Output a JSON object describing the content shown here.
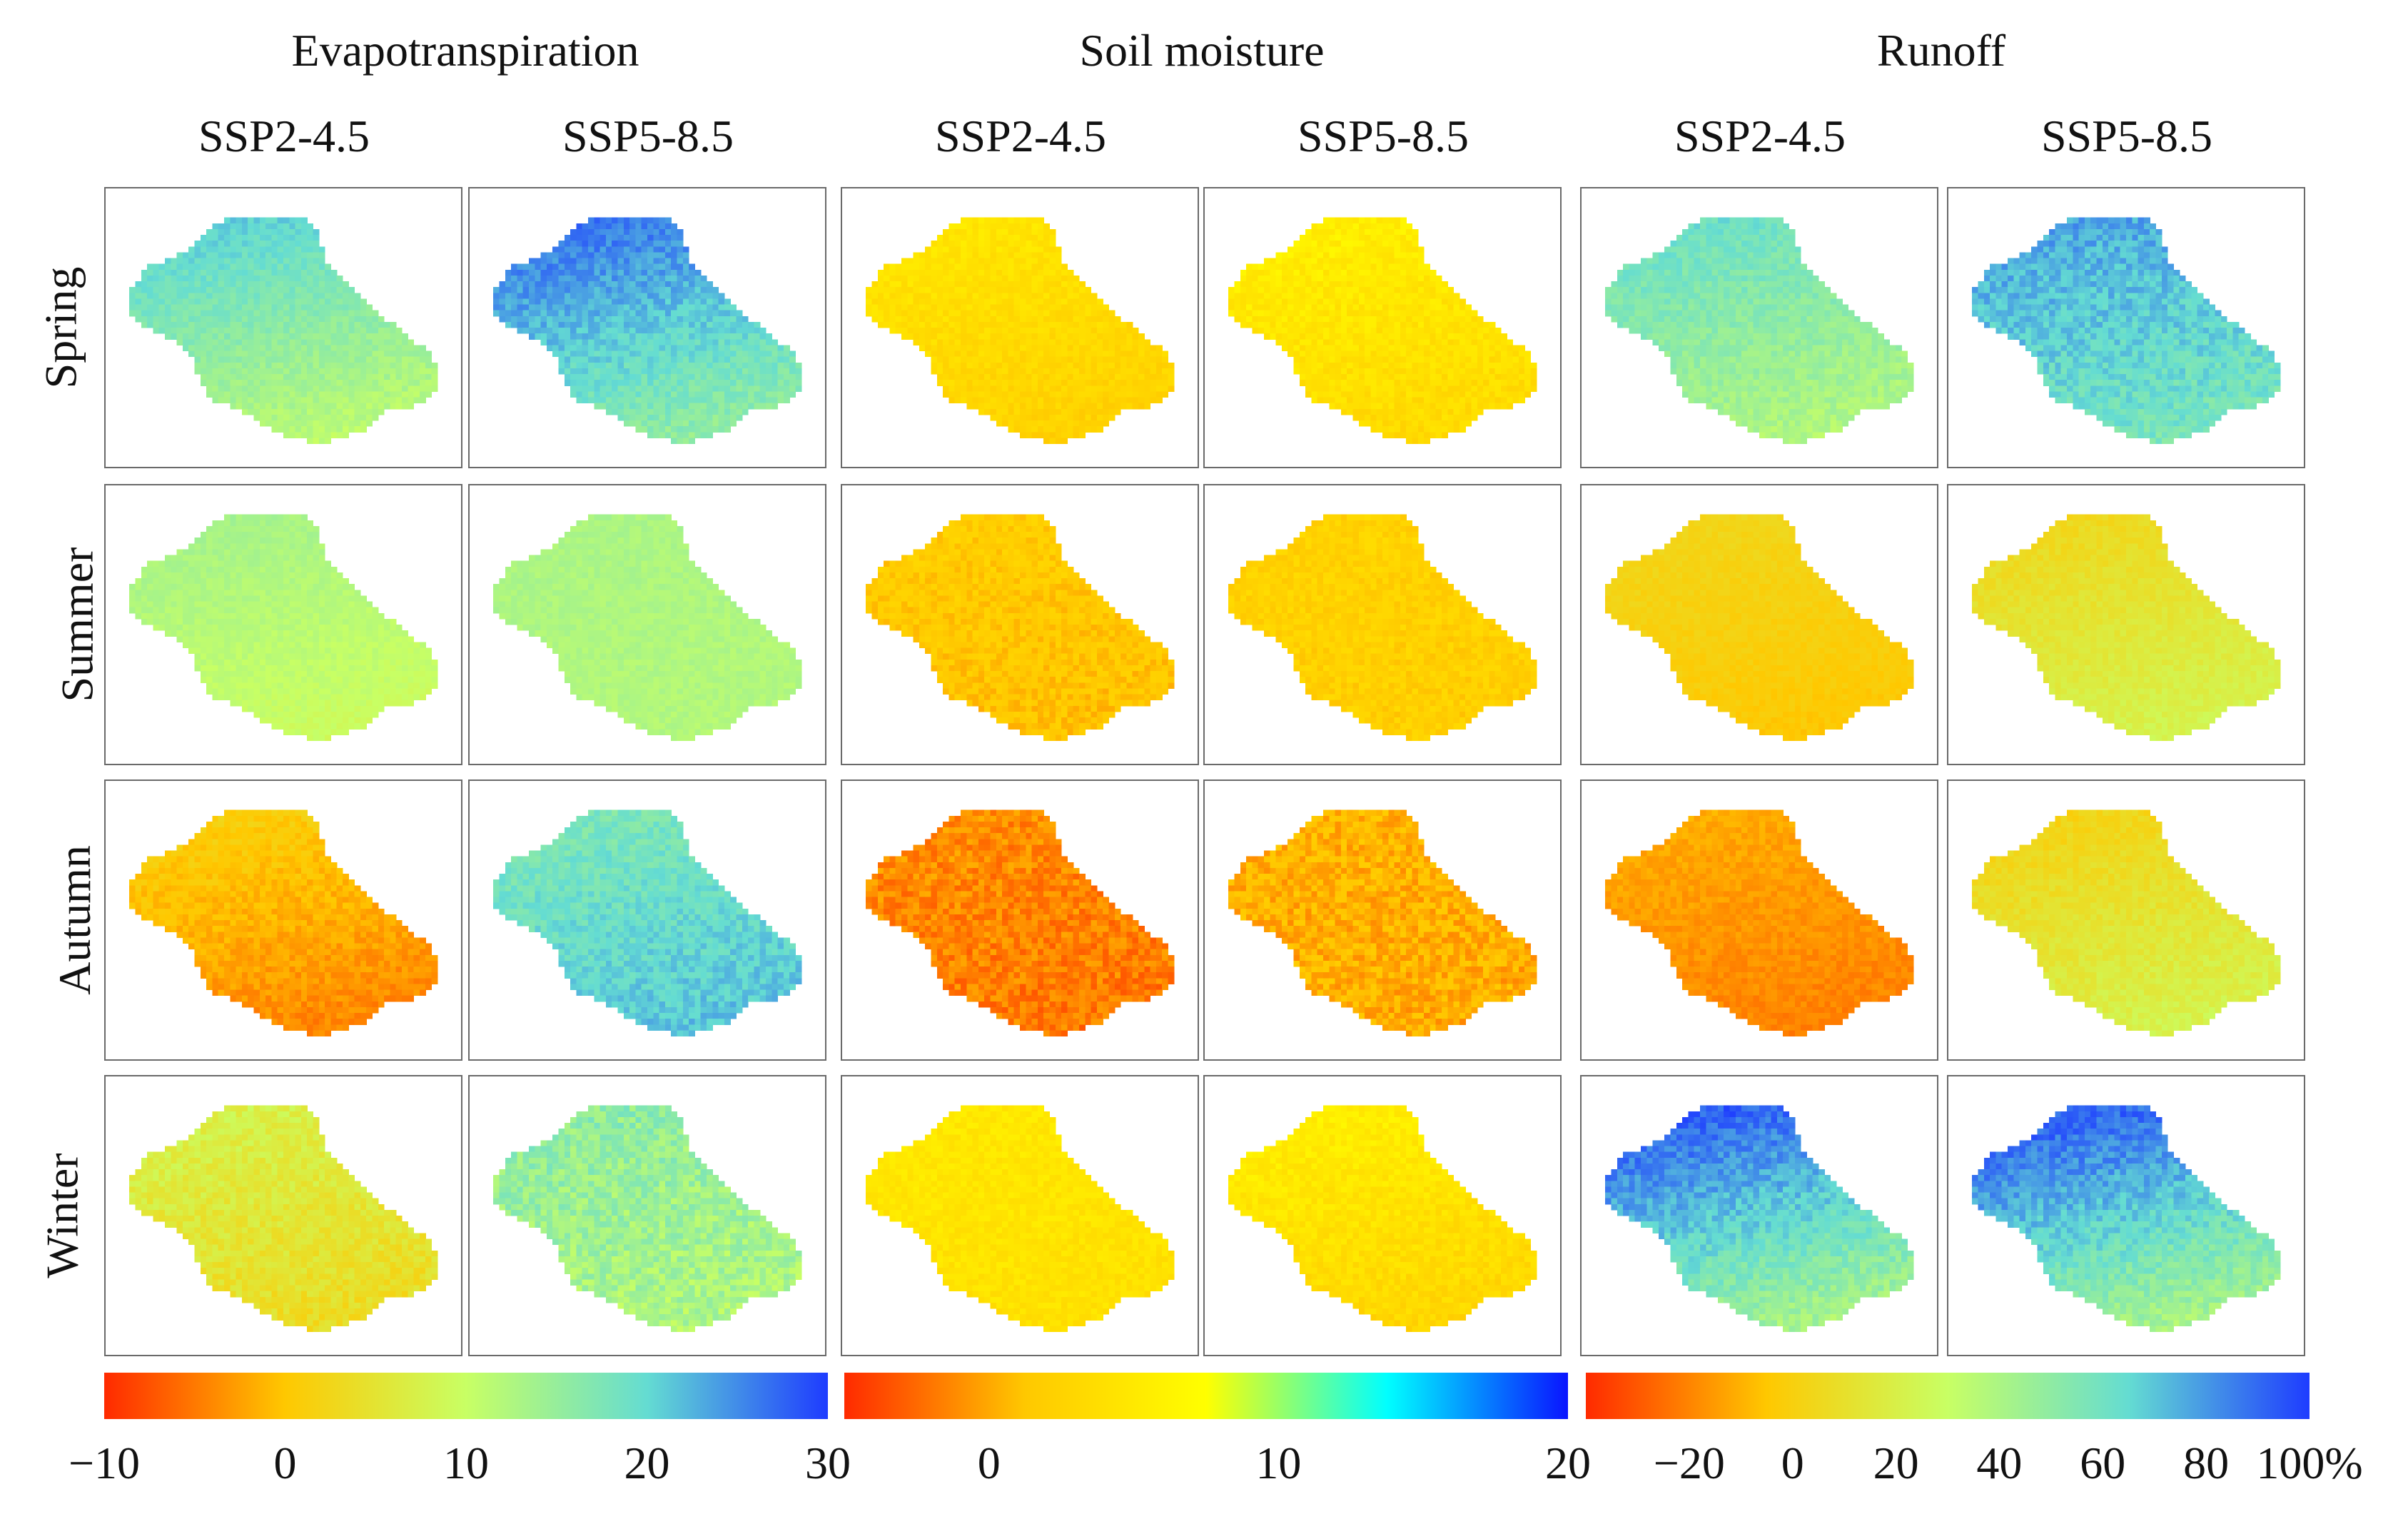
{
  "chart_data": {
    "type": "heatmap",
    "title": "",
    "variables": [
      {
        "name": "Evapotranspiration",
        "scenarios": [
          "SSP2-4.5",
          "SSP5-8.5"
        ],
        "colorbar": {
          "range": [
            -10,
            30
          ],
          "ticks": [
            "−10",
            "0",
            "10",
            "20",
            "30"
          ],
          "tick_values": [
            -10,
            0,
            10,
            20,
            30
          ],
          "colors": [
            "#ff2a00",
            "#ffc800",
            "#c8ff64",
            "#64dcd2",
            "#1e3cff"
          ]
        },
        "panels": {
          "Spring": {
            "SSP2-4.5": {
              "north": 22,
              "south": 10,
              "noise": 1.5
            },
            "SSP5-8.5": {
              "north": 28,
              "south": 14,
              "noise": 2.0
            }
          },
          "Summer": {
            "SSP2-4.5": {
              "north": 14,
              "south": 9,
              "noise": 1.0
            },
            "SSP5-8.5": {
              "north": 13,
              "south": 12,
              "noise": 1.0
            }
          },
          "Autumn": {
            "SSP2-4.5": {
              "north": 2,
              "south": -5,
              "noise": 1.5
            },
            "SSP5-8.5": {
              "north": 17,
              "south": 22,
              "noise": 2.0
            }
          },
          "Winter": {
            "SSP2-4.5": {
              "north": 8,
              "south": 3,
              "noise": 2.0
            },
            "SSP5-8.5": {
              "north": 16,
              "south": 12,
              "noise": 3.0
            }
          }
        }
      },
      {
        "name": "Soil moisture",
        "scenarios": [
          "SSP2-4.5",
          "SSP5-8.5"
        ],
        "colorbar": {
          "range": [
            -5,
            20
          ],
          "ticks": [
            "0",
            "10",
            "20"
          ],
          "tick_values": [
            0,
            10,
            20
          ],
          "colors": [
            "#ff2a00",
            "#ffc800",
            "#ffff00",
            "#00ffff",
            "#0a14ff"
          ]
        },
        "panels": {
          "Spring": {
            "SSP2-4.5": {
              "north": 5,
              "south": 2,
              "noise": 1.0
            },
            "SSP5-8.5": {
              "north": 6,
              "south": 3,
              "noise": 1.2
            }
          },
          "Summer": {
            "SSP2-4.5": {
              "north": 2,
              "south": 1,
              "noise": 1.2
            },
            "SSP5-8.5": {
              "north": 2.5,
              "south": 2,
              "noise": 1.2
            }
          },
          "Autumn": {
            "SSP2-4.5": {
              "north": -1,
              "south": -2,
              "noise": 1.5
            },
            "SSP5-8.5": {
              "north": 0.5,
              "south": 0,
              "noise": 1.5
            }
          },
          "Winter": {
            "SSP2-4.5": {
              "north": 5,
              "south": 4,
              "noise": 1.0
            },
            "SSP5-8.5": {
              "north": 6,
              "south": 2.5,
              "noise": 1.2
            }
          }
        }
      },
      {
        "name": "Runoff",
        "scenarios": [
          "SSP2-4.5",
          "SSP5-8.5"
        ],
        "colorbar": {
          "range": [
            -40,
            100
          ],
          "ticks": [
            "−20",
            "0",
            "20",
            "40",
            "60",
            "80",
            "100%"
          ],
          "tick_values": [
            -20,
            0,
            20,
            40,
            60,
            80,
            100
          ],
          "colors": [
            "#ff2a00",
            "#ffc800",
            "#c8ff64",
            "#64dcd2",
            "#1e3cff"
          ]
        },
        "panels": {
          "Spring": {
            "SSP2-4.5": {
              "north": 65,
              "south": 35,
              "noise": 6
            },
            "SSP5-8.5": {
              "north": 80,
              "south": 55,
              "noise": 8
            }
          },
          "Summer": {
            "SSP2-4.5": {
              "north": 5,
              "south": -5,
              "noise": 3
            },
            "SSP5-8.5": {
              "north": 3,
              "south": 25,
              "noise": 4
            }
          },
          "Autumn": {
            "SSP2-4.5": {
              "north": -10,
              "south": -22,
              "noise": 4
            },
            "SSP5-8.5": {
              "north": 0,
              "south": 25,
              "noise": 5
            }
          },
          "Winter": {
            "SSP2-4.5": {
              "north": 100,
              "south": 35,
              "noise": 8
            },
            "SSP5-8.5": {
              "north": 100,
              "south": 35,
              "noise": 8
            }
          }
        }
      }
    ],
    "seasons": [
      "Spring",
      "Summer",
      "Autumn",
      "Winter"
    ]
  }
}
